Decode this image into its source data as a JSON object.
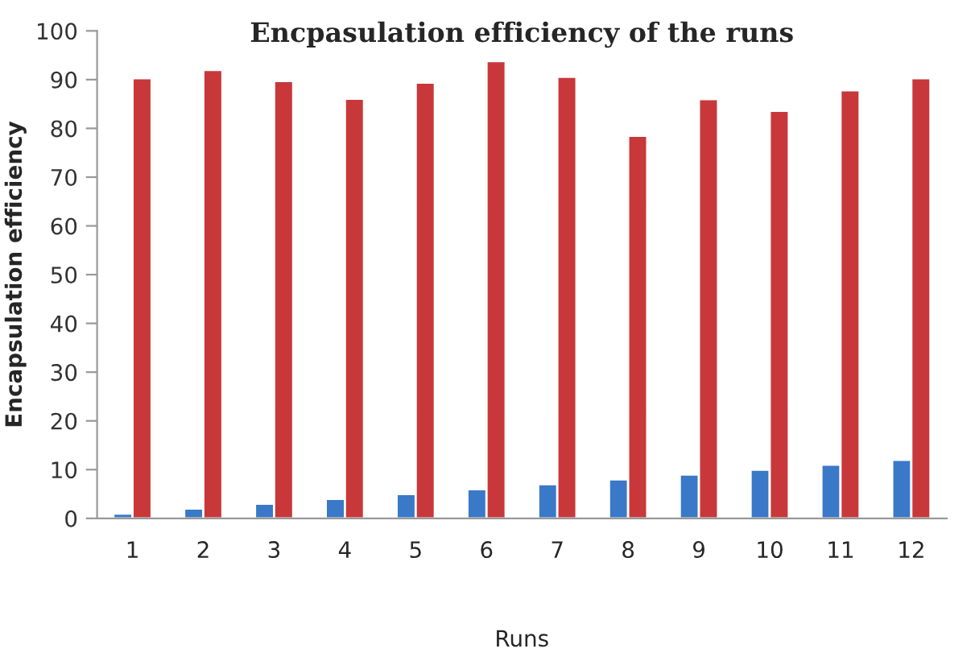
{
  "chart_data": {
    "type": "bar",
    "title": "Encpasulation efficiency of the runs",
    "xlabel": "Runs",
    "ylabel": "Encapsulation efficiency",
    "categories": [
      "1",
      "2",
      "3",
      "4",
      "5",
      "6",
      "7",
      "8",
      "9",
      "10",
      "11",
      "12"
    ],
    "series": [
      {
        "color": "#3a78c8",
        "values": [
          1,
          2,
          3,
          4,
          5,
          6,
          7,
          8,
          9,
          10,
          11,
          12
        ]
      },
      {
        "color": "#c8383a",
        "values": [
          90.3,
          92,
          89.7,
          86.1,
          89.4,
          93.8,
          90.6,
          78.5,
          86,
          83.6,
          87.8,
          90.3
        ]
      }
    ],
    "ylim": [
      0,
      100
    ],
    "yticks": [
      0,
      10,
      20,
      30,
      40,
      50,
      60,
      70,
      80,
      90,
      100
    ],
    "grid": false,
    "legend": false
  }
}
